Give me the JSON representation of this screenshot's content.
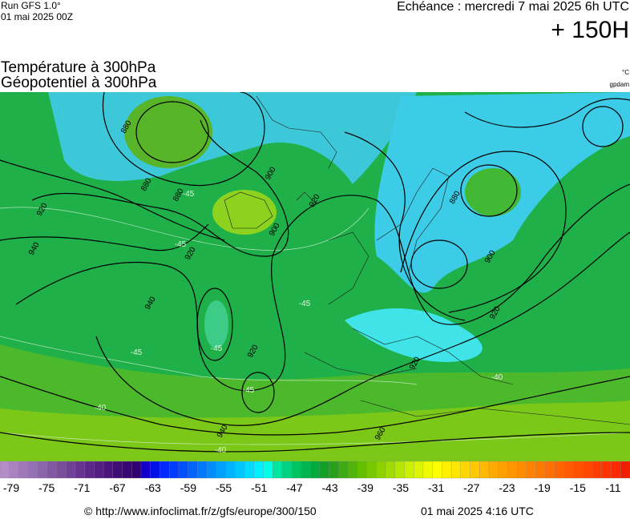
{
  "header": {
    "run": "Run GFS 1.0°",
    "run_date": "01 mai 2025 00Z",
    "valid": "Echéance : mercredi 7 mai 2025 6h UTC",
    "lead": "+ 150H",
    "title1": "Température à 300hPa",
    "title2": "Géopotentiel à 300hPa",
    "unit_temp": "°C",
    "unit_geo": "gpdam"
  },
  "map": {
    "contour_labels": [
      "880",
      "880",
      "900",
      "920",
      "920",
      "900",
      "880",
      "880",
      "900",
      "920",
      "940",
      "920",
      "920",
      "940",
      "940",
      "960",
      "920"
    ],
    "temp_labels": [
      "-45",
      "-45",
      "-45",
      "-45",
      "-45",
      "-40",
      "-40",
      "-40",
      "-45"
    ]
  },
  "colorbar": {
    "colors": [
      "#b48cc8",
      "#a982c0",
      "#9e78b8",
      "#9670b4",
      "#8c64ac",
      "#8258a4",
      "#7a4c9c",
      "#704096",
      "#66348e",
      "#5c2888",
      "#541e82",
      "#4a147c",
      "#420c78",
      "#3a0674",
      "#300070",
      "#1400c8",
      "#0010e6",
      "#0028ff",
      "#003cff",
      "#0050ff",
      "#0064ff",
      "#0078ff",
      "#008cff",
      "#00a0ff",
      "#00b4ff",
      "#00c8ff",
      "#00dcff",
      "#00f0ff",
      "#00ffe6",
      "#00e6a0",
      "#00d282",
      "#00c364",
      "#00b450",
      "#00aa3c",
      "#14a028",
      "#28a01e",
      "#3caa14",
      "#50b40a",
      "#64be00",
      "#78c800",
      "#8cd200",
      "#a0dc00",
      "#b4e600",
      "#c8f000",
      "#dcf500",
      "#f0fa00",
      "#ffff00",
      "#fff000",
      "#ffe600",
      "#ffd700",
      "#ffc800",
      "#ffb900",
      "#ffaa00",
      "#ffa000",
      "#ff9600",
      "#ff8c00",
      "#ff8200",
      "#ff7800",
      "#ff6e00",
      "#ff6400",
      "#ff5a00",
      "#ff5000",
      "#ff4600",
      "#ff3c00",
      "#ff3200",
      "#ff2800",
      "#f01e00"
    ],
    "ticks": [
      -79,
      -75,
      -71,
      -67,
      -63,
      -59,
      -55,
      -51,
      -47,
      -43,
      -39,
      -35,
      -31,
      -27,
      -23,
      -19,
      -15,
      -11
    ]
  },
  "footer": {
    "source": "© http://www.infoclimat.fr/z/gfs/europe/300/150",
    "generated": "01 mai 2025  4:16 UTC"
  }
}
